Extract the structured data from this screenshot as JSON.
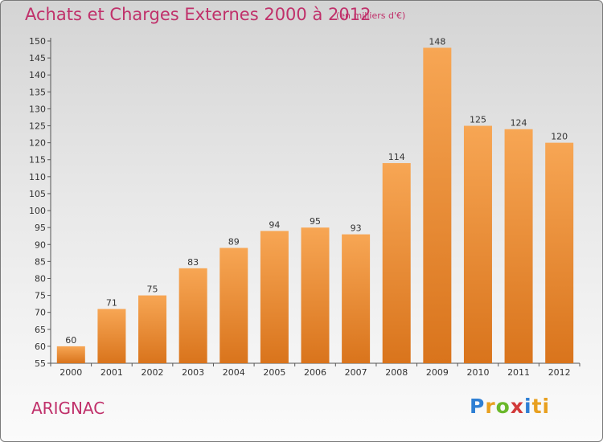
{
  "header": {
    "title": "Achats et Charges Externes 2000 à 2012",
    "unit": "(en milliers d'€)"
  },
  "footer": {
    "commune": "ARIGNAC",
    "logo": [
      "P",
      "r",
      "o",
      "x",
      "i",
      "ti"
    ]
  },
  "chart_data": {
    "type": "bar",
    "title": "Achats et Charges Externes 2000 à 2012",
    "subtitle": "(en milliers d'€)",
    "categories": [
      "2000",
      "2001",
      "2002",
      "2003",
      "2004",
      "2005",
      "2006",
      "2007",
      "2008",
      "2009",
      "2010",
      "2011",
      "2012"
    ],
    "values": [
      60,
      71,
      75,
      83,
      89,
      94,
      95,
      93,
      114,
      148,
      125,
      124,
      120
    ],
    "ylim": [
      55,
      150
    ],
    "ytick_step": 5,
    "grid": false,
    "data_labels": true,
    "colors": {
      "bar_top": "#f7a654",
      "bar_bottom": "#d9741c",
      "axis": "#555555"
    }
  }
}
